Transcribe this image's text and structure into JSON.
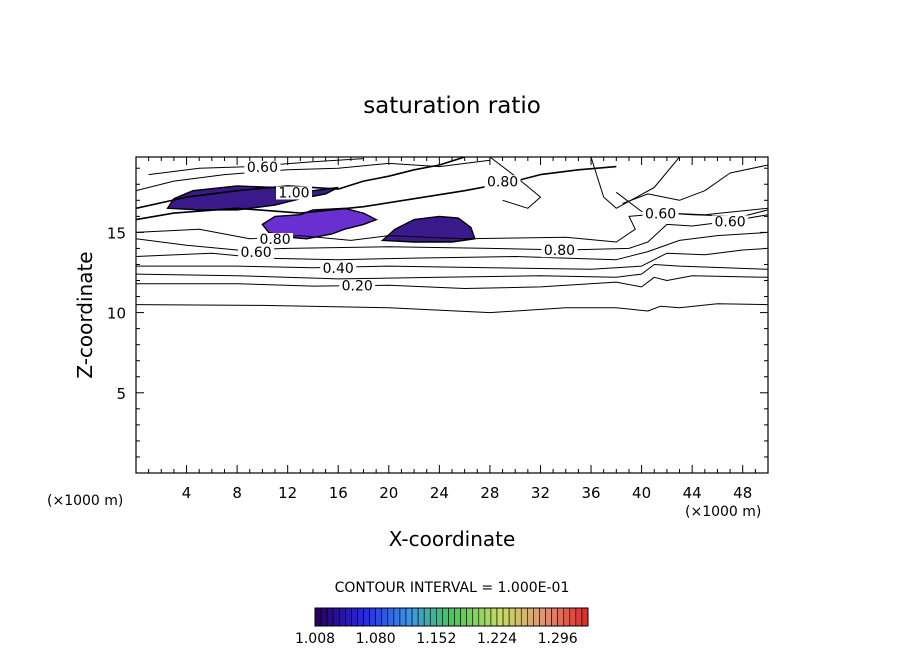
{
  "chart_data": {
    "type": "contour",
    "title": "saturation ratio",
    "xlabel": "X-coordinate",
    "ylabel": "Z-coordinate",
    "x_unit_label": "(×1000 m)",
    "y_unit_label": "(×1000 m)",
    "xlim": [
      0,
      50
    ],
    "ylim": [
      0,
      19.7
    ],
    "x_ticks": [
      "4",
      "8",
      "12",
      "16",
      "20",
      "24",
      "28",
      "32",
      "36",
      "40",
      "44",
      "48"
    ],
    "x_tick_values": [
      4,
      8,
      12,
      16,
      20,
      24,
      28,
      32,
      36,
      40,
      44,
      48
    ],
    "y_ticks": [
      "5",
      "10",
      "15"
    ],
    "y_tick_values": [
      5,
      10,
      15
    ],
    "contour_interval_text": "CONTOUR INTERVAL = 1.000E-01",
    "contour_labels": [
      {
        "text": "0.60",
        "x": 10,
        "z": 18.9
      },
      {
        "text": "0.80",
        "x": 29,
        "z": 18.0
      },
      {
        "text": "1.00",
        "x": 12.5,
        "z": 17.3
      },
      {
        "text": "0.60",
        "x": 41.5,
        "z": 16.0
      },
      {
        "text": "0.60",
        "x": 47,
        "z": 15.5
      },
      {
        "text": "0.80",
        "x": 11,
        "z": 14.4
      },
      {
        "text": "0.60",
        "x": 9.5,
        "z": 13.6
      },
      {
        "text": "0.80",
        "x": 33.5,
        "z": 13.7
      },
      {
        "text": "0.40",
        "x": 16,
        "z": 12.6
      },
      {
        "text": "0.20",
        "x": 17.5,
        "z": 11.5
      }
    ],
    "contours": [
      {
        "level": 0.1,
        "points": [
          [
            0,
            10.5
          ],
          [
            10,
            10.45
          ],
          [
            20,
            10.3
          ],
          [
            28,
            10.0
          ],
          [
            34,
            10.3
          ],
          [
            38,
            10.3
          ],
          [
            40.5,
            10.1
          ],
          [
            41.5,
            10.4
          ],
          [
            43,
            10.3
          ],
          [
            46,
            10.55
          ],
          [
            50,
            10.5
          ]
        ]
      },
      {
        "level": 0.2,
        "points": [
          [
            0,
            11.8
          ],
          [
            8,
            11.8
          ],
          [
            14,
            11.65
          ],
          [
            20,
            11.7
          ],
          [
            26,
            11.5
          ],
          [
            32,
            11.6
          ],
          [
            38,
            11.9
          ],
          [
            40,
            11.6
          ],
          [
            41,
            12.2
          ],
          [
            42,
            12.0
          ],
          [
            44,
            12.3
          ],
          [
            50,
            12.2
          ]
        ]
      },
      {
        "level": 0.3,
        "points": [
          [
            0,
            12.4
          ],
          [
            8,
            12.3
          ],
          [
            16,
            12.1
          ],
          [
            24,
            12.2
          ],
          [
            32,
            12.3
          ],
          [
            38,
            12.2
          ],
          [
            40,
            12.4
          ],
          [
            41,
            13.0
          ],
          [
            43,
            12.9
          ],
          [
            50,
            12.7
          ]
        ]
      },
      {
        "level": 0.4,
        "points": [
          [
            0,
            12.9
          ],
          [
            8,
            12.9
          ],
          [
            14,
            12.8
          ],
          [
            20,
            12.9
          ],
          [
            28,
            12.8
          ],
          [
            36,
            12.7
          ],
          [
            40,
            12.9
          ],
          [
            42,
            13.7
          ],
          [
            45,
            13.6
          ],
          [
            48,
            13.9
          ],
          [
            50,
            14.0
          ]
        ]
      },
      {
        "level": 0.5,
        "points": [
          [
            0,
            13.5
          ],
          [
            6,
            13.7
          ],
          [
            10,
            13.4
          ],
          [
            16,
            13.3
          ],
          [
            22,
            13.4
          ],
          [
            30,
            13.5
          ],
          [
            38,
            13.3
          ],
          [
            40.5,
            13.8
          ],
          [
            43,
            14.5
          ],
          [
            46,
            14.8
          ],
          [
            50,
            15.0
          ]
        ]
      },
      {
        "level": 0.6,
        "points": [
          [
            0,
            14.6
          ],
          [
            4,
            14.2
          ],
          [
            8,
            13.9
          ],
          [
            12,
            14.0
          ],
          [
            20,
            14.1
          ],
          [
            28,
            14.0
          ],
          [
            34,
            13.9
          ],
          [
            39,
            14.0
          ],
          [
            40.5,
            14.4
          ],
          [
            42,
            15.5
          ],
          [
            44,
            15.4
          ],
          [
            47,
            15.7
          ],
          [
            50,
            16.1
          ]
        ]
      },
      {
        "level": 0.7,
        "points": [
          [
            0,
            15.0
          ],
          [
            5,
            15.2
          ],
          [
            9,
            14.6
          ],
          [
            13,
            14.8
          ],
          [
            17,
            14.5
          ],
          [
            20,
            14.8
          ],
          [
            26,
            14.6
          ],
          [
            34,
            14.7
          ],
          [
            38,
            14.4
          ],
          [
            39.5,
            15.2
          ],
          [
            39,
            16.0
          ],
          [
            42,
            16.2
          ],
          [
            45,
            16.1
          ],
          [
            50,
            16.5
          ]
        ]
      },
      {
        "level": 0.8,
        "points": [
          [
            0,
            15.8
          ],
          [
            3,
            16.2
          ],
          [
            8,
            16.5
          ],
          [
            13,
            16.2
          ],
          [
            18,
            16.6
          ],
          [
            22,
            17.1
          ],
          [
            26,
            17.6
          ],
          [
            30,
            18.2
          ],
          [
            32,
            18.6
          ],
          [
            35,
            18.9
          ],
          [
            38,
            19.1
          ]
        ]
      },
      {
        "level": 0.8,
        "points": [
          [
            0,
            16.5
          ],
          [
            4,
            17.2
          ],
          [
            8,
            17.6
          ],
          [
            12,
            17.9
          ],
          [
            16,
            17.7
          ],
          [
            18,
            18.2
          ],
          [
            20,
            18.5
          ],
          [
            22,
            18.9
          ],
          [
            24,
            19.2
          ],
          [
            26,
            19.7
          ]
        ]
      },
      {
        "level": 0.6,
        "points": [
          [
            0,
            17.6
          ],
          [
            3,
            18.2
          ],
          [
            7,
            18.6
          ],
          [
            12,
            18.9
          ],
          [
            16,
            19.0
          ],
          [
            20,
            19.3
          ],
          [
            24,
            19.1
          ],
          [
            28,
            19.5
          ]
        ]
      },
      {
        "level": 0.5,
        "points": [
          [
            1,
            18.6
          ],
          [
            5,
            19.0
          ],
          [
            9,
            19.1
          ],
          [
            14,
            19.4
          ],
          [
            18,
            19.6
          ]
        ]
      },
      {
        "level": 0.4,
        "points": [
          [
            28,
            19.7
          ],
          [
            30,
            18.5
          ],
          [
            32,
            17.2
          ],
          [
            31,
            16.5
          ],
          [
            29,
            17.0
          ]
        ]
      },
      {
        "level": 0.6,
        "points": [
          [
            38,
            17.5
          ],
          [
            40,
            16.3
          ],
          [
            44,
            16.1
          ],
          [
            48,
            16.0
          ],
          [
            50,
            16.4
          ]
        ]
      },
      {
        "level": 0.7,
        "points": [
          [
            38.5,
            16.8
          ],
          [
            40.5,
            17.4
          ],
          [
            43,
            17.0
          ],
          [
            45,
            17.6
          ],
          [
            47,
            18.7
          ],
          [
            50,
            19.2
          ]
        ]
      },
      {
        "level": 0.3,
        "points": [
          [
            36,
            19.7
          ],
          [
            37,
            17.2
          ],
          [
            38,
            16.5
          ],
          [
            41,
            17.8
          ],
          [
            43,
            19.7
          ]
        ]
      }
    ],
    "filled_regions": [
      {
        "level": 1.05,
        "points": [
          [
            2.5,
            16.5
          ],
          [
            3,
            17.1
          ],
          [
            4.5,
            17.6
          ],
          [
            8,
            17.9
          ],
          [
            11,
            17.8
          ],
          [
            14,
            17.6
          ],
          [
            16,
            17.8
          ],
          [
            15,
            17.4
          ],
          [
            13,
            17.1
          ],
          [
            11,
            16.7
          ],
          [
            8,
            16.4
          ],
          [
            5,
            16.4
          ]
        ]
      },
      {
        "level": 1.12,
        "points": [
          [
            10,
            15.5
          ],
          [
            11,
            16.0
          ],
          [
            13,
            16.1
          ],
          [
            14,
            16.4
          ],
          [
            16.5,
            16.5
          ],
          [
            18,
            16.2
          ],
          [
            19,
            15.8
          ],
          [
            18,
            15.5
          ],
          [
            16.5,
            15.2
          ],
          [
            15.5,
            14.9
          ],
          [
            13.5,
            14.6
          ],
          [
            12,
            14.7
          ],
          [
            10.5,
            15.0
          ]
        ]
      },
      {
        "level": 1.03,
        "points": [
          [
            19.5,
            14.5
          ],
          [
            20.5,
            15.2
          ],
          [
            22,
            15.8
          ],
          [
            24,
            16.0
          ],
          [
            25.5,
            15.9
          ],
          [
            26.5,
            15.3
          ],
          [
            26.8,
            14.6
          ],
          [
            25,
            14.4
          ],
          [
            22,
            14.4
          ]
        ]
      }
    ],
    "colorbar": {
      "ticks": [
        "1.008",
        "1.080",
        "1.152",
        "1.224",
        "1.296"
      ],
      "tick_values": [
        1.008,
        1.08,
        1.152,
        1.224,
        1.296
      ],
      "range": [
        1.008,
        1.332
      ]
    }
  },
  "colors": {
    "contour": "#000000",
    "fill_low": "#3a1a8a",
    "fill_mid": "#6a2fd0"
  }
}
